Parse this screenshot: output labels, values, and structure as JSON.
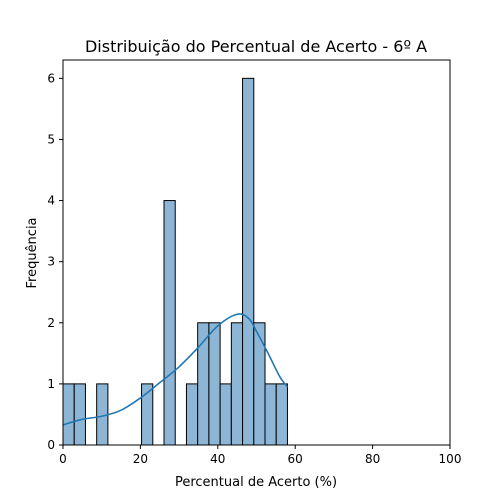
{
  "chart_data": {
    "type": "bar",
    "title": "Distribuição do Percentual de Acerto - 6º A",
    "xlabel": "Percentual de Acerto (%)",
    "ylabel": "Frequência",
    "xlim": [
      0,
      100
    ],
    "ylim": [
      0,
      6.3
    ],
    "x_ticks": [
      0,
      20,
      40,
      60,
      80,
      100
    ],
    "y_ticks": [
      0,
      1,
      2,
      3,
      4,
      5,
      6
    ],
    "grid": false,
    "bin_width": 2.9,
    "bins": [
      {
        "start": 0.0,
        "end": 2.9,
        "count": 1
      },
      {
        "start": 2.9,
        "end": 5.8,
        "count": 1
      },
      {
        "start": 8.7,
        "end": 11.6,
        "count": 1
      },
      {
        "start": 20.3,
        "end": 23.2,
        "count": 1
      },
      {
        "start": 26.1,
        "end": 29.0,
        "count": 4
      },
      {
        "start": 31.9,
        "end": 34.8,
        "count": 1
      },
      {
        "start": 34.8,
        "end": 37.7,
        "count": 2
      },
      {
        "start": 37.7,
        "end": 40.6,
        "count": 2
      },
      {
        "start": 40.6,
        "end": 43.5,
        "count": 1
      },
      {
        "start": 43.5,
        "end": 46.4,
        "count": 2
      },
      {
        "start": 46.4,
        "end": 49.3,
        "count": 6
      },
      {
        "start": 49.3,
        "end": 52.2,
        "count": 2
      },
      {
        "start": 52.2,
        "end": 55.1,
        "count": 1
      },
      {
        "start": 55.1,
        "end": 58.0,
        "count": 1
      }
    ],
    "kde": {
      "x": [
        0,
        5,
        10,
        15,
        20,
        25,
        30,
        35,
        40,
        45,
        48,
        50,
        53,
        56,
        58
      ],
      "y": [
        0.33,
        0.42,
        0.47,
        0.57,
        0.77,
        1.02,
        1.28,
        1.6,
        1.95,
        2.14,
        2.07,
        1.86,
        1.5,
        1.12,
        0.95
      ]
    },
    "colors": {
      "bar_fill": "#8db6d6",
      "bar_edge": "#000000",
      "kde_line": "#1f77b4"
    }
  }
}
